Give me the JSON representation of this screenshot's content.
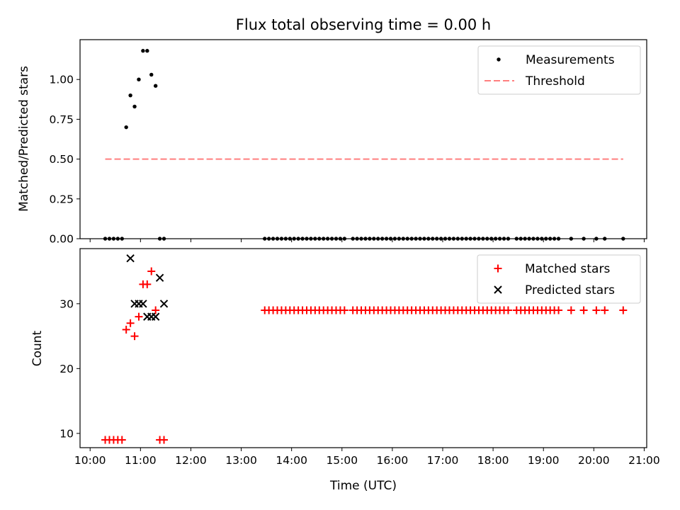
{
  "title": "Flux total observing time = 0.00 h",
  "x_axis": {
    "label": "Time (UTC)",
    "range_hours": [
      9.8,
      21.05
    ],
    "tick_hours": [
      10,
      11,
      12,
      13,
      14,
      15,
      16,
      17,
      18,
      19,
      20,
      21
    ],
    "tick_labels": [
      "10:00",
      "11:00",
      "12:00",
      "13:00",
      "14:00",
      "15:00",
      "16:00",
      "17:00",
      "18:00",
      "19:00",
      "20:00",
      "21:00"
    ]
  },
  "chart_data": [
    {
      "type": "scatter",
      "panel": "top",
      "ylabel": "Matched/Predicted stars",
      "ylim": [
        0,
        1.25
      ],
      "yticks": [
        0,
        0.25,
        0.5,
        0.75,
        1.0
      ],
      "ytick_labels": [
        "0.00",
        "0.25",
        "0.50",
        "0.75",
        "1.00"
      ],
      "legend_position": "top-right",
      "series": [
        {
          "name": "Measurements",
          "kind": "scatter",
          "color": "#000000",
          "x": [
            "10:18",
            "10:23",
            "10:28",
            "10:33",
            "10:38",
            "10:43",
            "10:48",
            "10:53",
            "10:58",
            "11:03",
            "11:08",
            "11:13",
            "11:18",
            "11:23",
            "11:28",
            "13:28",
            "13:33",
            "13:38",
            "13:43",
            "13:48",
            "13:53",
            "13:58",
            "14:03",
            "14:08",
            "14:13",
            "14:18",
            "14:23",
            "14:28",
            "14:33",
            "14:38",
            "14:43",
            "14:48",
            "14:53",
            "14:58",
            "15:03",
            "15:13",
            "15:18",
            "15:23",
            "15:28",
            "15:33",
            "15:38",
            "15:43",
            "15:48",
            "15:53",
            "15:58",
            "16:03",
            "16:08",
            "16:13",
            "16:18",
            "16:23",
            "16:28",
            "16:33",
            "16:38",
            "16:43",
            "16:48",
            "16:53",
            "16:58",
            "17:03",
            "17:08",
            "17:13",
            "17:18",
            "17:23",
            "17:28",
            "17:33",
            "17:38",
            "17:43",
            "17:48",
            "17:53",
            "17:58",
            "18:03",
            "18:08",
            "18:13",
            "18:18",
            "18:28",
            "18:33",
            "18:38",
            "18:43",
            "18:48",
            "18:53",
            "18:58",
            "19:03",
            "19:08",
            "19:13",
            "19:18",
            "19:33",
            "19:48",
            "20:03",
            "20:13",
            "20:35"
          ],
          "y": [
            0,
            0,
            0,
            0,
            0,
            0.7,
            0.9,
            0.83,
            1.0,
            1.18,
            1.18,
            1.03,
            0.96,
            0,
            0,
            0,
            0,
            0,
            0,
            0,
            0,
            0,
            0,
            0,
            0,
            0,
            0,
            0,
            0,
            0,
            0,
            0,
            0,
            0,
            0,
            0,
            0,
            0,
            0,
            0,
            0,
            0,
            0,
            0,
            0,
            0,
            0,
            0,
            0,
            0,
            0,
            0,
            0,
            0,
            0,
            0,
            0,
            0,
            0,
            0,
            0,
            0,
            0,
            0,
            0,
            0,
            0,
            0,
            0,
            0,
            0,
            0,
            0,
            0,
            0,
            0,
            0,
            0,
            0,
            0,
            0,
            0,
            0,
            0,
            0,
            0,
            0,
            0,
            0
          ]
        },
        {
          "name": "Threshold",
          "kind": "line",
          "style": "dashed",
          "color": "#ff7f7f",
          "x": [
            "10:18",
            "20:35"
          ],
          "y": [
            0.5,
            0.5
          ]
        }
      ]
    },
    {
      "type": "scatter",
      "panel": "bottom",
      "xlabel": "Time (UTC)",
      "ylabel": "Count",
      "ylim": [
        7.8,
        38.5
      ],
      "yticks": [
        10,
        20,
        30
      ],
      "ytick_labels": [
        "10",
        "20",
        "30"
      ],
      "legend_position": "top-right",
      "series": [
        {
          "name": "Matched stars",
          "marker": "+",
          "color": "#ff0000",
          "x": [
            "10:18",
            "10:23",
            "10:28",
            "10:33",
            "10:38",
            "10:43",
            "10:48",
            "10:53",
            "10:58",
            "11:03",
            "11:08",
            "11:13",
            "11:18",
            "11:23",
            "11:28",
            "13:28",
            "13:33",
            "13:38",
            "13:43",
            "13:48",
            "13:53",
            "13:58",
            "14:03",
            "14:08",
            "14:13",
            "14:18",
            "14:23",
            "14:28",
            "14:33",
            "14:38",
            "14:43",
            "14:48",
            "14:53",
            "14:58",
            "15:03",
            "15:13",
            "15:18",
            "15:23",
            "15:28",
            "15:33",
            "15:38",
            "15:43",
            "15:48",
            "15:53",
            "15:58",
            "16:03",
            "16:08",
            "16:13",
            "16:18",
            "16:23",
            "16:28",
            "16:33",
            "16:38",
            "16:43",
            "16:48",
            "16:53",
            "16:58",
            "17:03",
            "17:08",
            "17:13",
            "17:18",
            "17:23",
            "17:28",
            "17:33",
            "17:38",
            "17:43",
            "17:48",
            "17:53",
            "17:58",
            "18:03",
            "18:08",
            "18:13",
            "18:18",
            "18:28",
            "18:33",
            "18:38",
            "18:43",
            "18:48",
            "18:53",
            "18:58",
            "19:03",
            "19:08",
            "19:13",
            "19:18",
            "19:33",
            "19:48",
            "20:03",
            "20:13",
            "20:35"
          ],
          "y": [
            9,
            9,
            9,
            9,
            9,
            26,
            27,
            25,
            28,
            33,
            33,
            35,
            29,
            9,
            9,
            29,
            29,
            29,
            29,
            29,
            29,
            29,
            29,
            29,
            29,
            29,
            29,
            29,
            29,
            29,
            29,
            29,
            29,
            29,
            29,
            29,
            29,
            29,
            29,
            29,
            29,
            29,
            29,
            29,
            29,
            29,
            29,
            29,
            29,
            29,
            29,
            29,
            29,
            29,
            29,
            29,
            29,
            29,
            29,
            29,
            29,
            29,
            29,
            29,
            29,
            29,
            29,
            29,
            29,
            29,
            29,
            29,
            29,
            29,
            29,
            29,
            29,
            29,
            29,
            29,
            29,
            29,
            29,
            29,
            29,
            29,
            29,
            29,
            29
          ]
        },
        {
          "name": "Predicted stars",
          "marker": "x",
          "color": "#000000",
          "x": [
            "10:48",
            "10:53",
            "10:58",
            "11:03",
            "11:08",
            "11:13",
            "11:18",
            "11:23",
            "11:28"
          ],
          "y": [
            37,
            30,
            30,
            30,
            28,
            28,
            28,
            34,
            30
          ]
        }
      ]
    }
  ]
}
